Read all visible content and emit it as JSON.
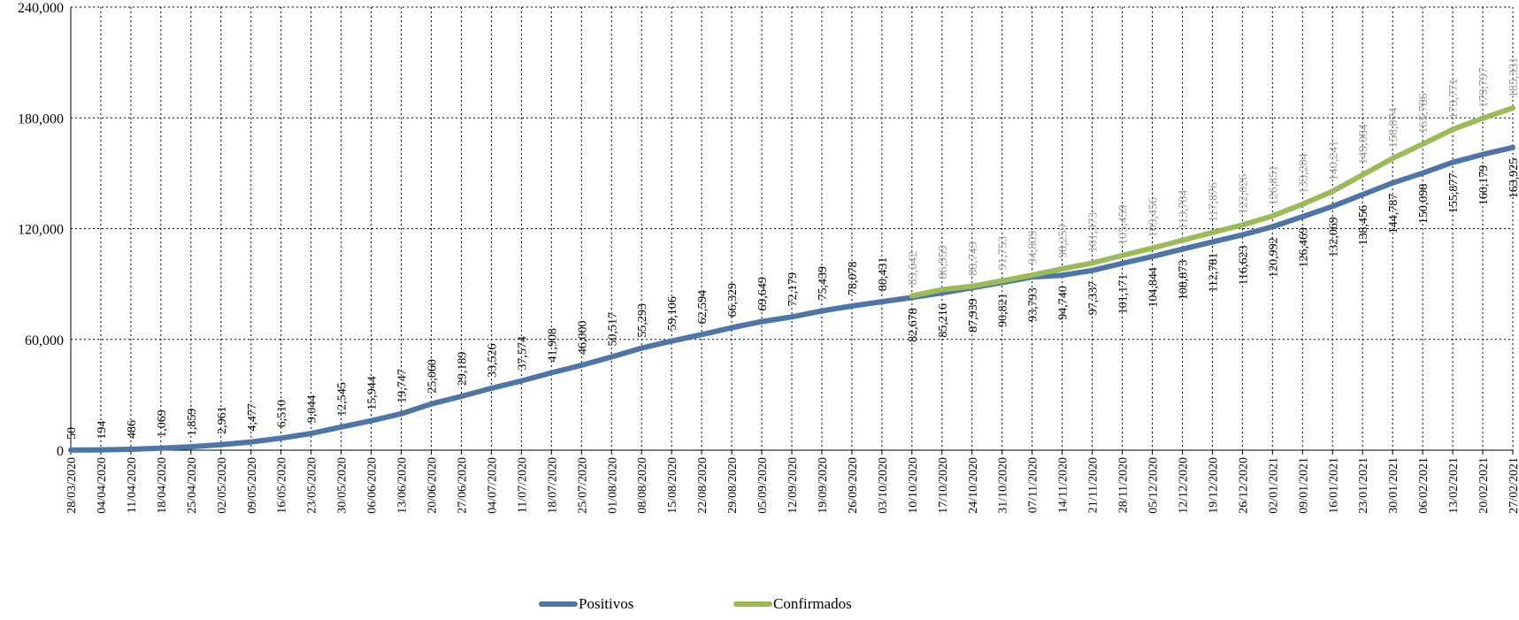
{
  "chart_data": {
    "type": "line",
    "x_range": [
      "28/03/2020",
      "27/02/2021"
    ],
    "ylim": [
      0,
      240000
    ],
    "yticks": [
      0,
      60000,
      120000,
      180000,
      240000
    ],
    "ytick_labels": [
      "0",
      "60,000",
      "120,000",
      "180,000",
      "240,000"
    ],
    "grid": true,
    "legend_position": "bottom",
    "xtick_labels": [
      "28/03/2020",
      "04/04/2020",
      "11/04/2020",
      "18/04/2020",
      "25/04/2020",
      "02/05/2020",
      "09/05/2020",
      "16/05/2020",
      "23/05/2020",
      "30/05/2020",
      "06/06/2020",
      "13/06/2020",
      "20/06/2020",
      "27/06/2020",
      "04/07/2020",
      "11/07/2020",
      "18/07/2020",
      "25/07/2020",
      "01/08/2020",
      "08/08/2020",
      "15/08/2020",
      "22/08/2020",
      "29/08/2020",
      "05/09/2020",
      "12/09/2020",
      "19/09/2020",
      "26/09/2020",
      "03/10/2020",
      "10/10/2020",
      "17/10/2020",
      "24/10/2020",
      "31/10/2020",
      "07/11/2020",
      "14/11/2020",
      "21/11/2020",
      "28/11/2020",
      "05/12/2020",
      "12/12/2020",
      "19/12/2020",
      "26/12/2020",
      "02/01/2021",
      "09/01/2021",
      "16/01/2021",
      "23/01/2021",
      "30/01/2021",
      "06/02/2021",
      "13/02/2021",
      "20/02/2021",
      "27/02/2021"
    ],
    "series": [
      {
        "name": "Positivos",
        "color": "#4f74a8",
        "values": [
          50,
          194,
          486,
          1069,
          1859,
          2961,
          4477,
          6510,
          9044,
          12545,
          15944,
          19747,
          25060,
          29189,
          33526,
          37574,
          41908,
          46000,
          50517,
          55293,
          59106,
          62594,
          66329,
          69649,
          72179,
          75439,
          78078,
          80431,
          82678,
          85216,
          87939,
          90821,
          93793,
          94740,
          97337,
          101171,
          104844,
          108873,
          112781,
          116623,
          120992,
          126469,
          132069,
          138456,
          144787,
          150098,
          155877,
          160179,
          163925
        ],
        "labels": [
          "50",
          "194",
          "486",
          "1,069",
          "1,859",
          "2,961",
          "4,477",
          "6,510",
          "9,044",
          "12,545",
          "15,944",
          "19,747",
          "25,060",
          "29,189",
          "33,526",
          "37,574",
          "41,908",
          "46,000",
          "50,517",
          "55,293",
          "59,106",
          "62,594",
          "66,329",
          "69,649",
          "72,179",
          "75,439",
          "78,078",
          "80,431",
          "82,678",
          "85,216",
          "87,939",
          "90,821",
          "93,793",
          "94,740",
          "97,337",
          "101,171",
          "104,844",
          "108,873",
          "112,781",
          "116,623",
          "120,992",
          "126,469",
          "132,069",
          "138,456",
          "144,787",
          "150,098",
          "155,877",
          "160,179",
          "163,925"
        ]
      },
      {
        "name": "Confirmados",
        "color": "#9bbb59",
        "start_index": 28,
        "values": [
          83642,
          86959,
          88743,
          91753,
          94809,
          98259,
          101373,
          105459,
          109456,
          113704,
          117876,
          122026,
          126851,
          133204,
          140241,
          149084,
          158074,
          165786,
          173771,
          179797,
          185331
        ],
        "labels": [
          "83,642",
          "86,959",
          "88,743",
          "91,753",
          "94,809",
          "98,259",
          "101,373",
          "105,459",
          "109,456",
          "113,704",
          "117,876",
          "122,026",
          "126,851",
          "133,204",
          "140,241",
          "149,084",
          "158,074",
          "165,786",
          "173,771",
          "179,797",
          "185,331"
        ]
      }
    ]
  }
}
